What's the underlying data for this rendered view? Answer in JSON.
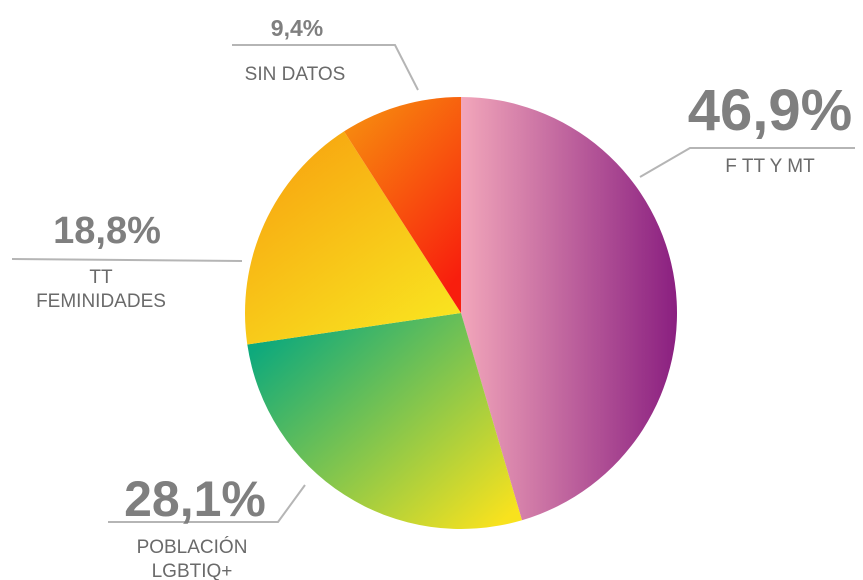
{
  "chart_data": {
    "type": "pie",
    "categories": [
      "F TT Y MT",
      "POBLACIÓN\nLGBTIQ+",
      "TT\nFEMINIDADES",
      "SIN DATOS"
    ],
    "values": [
      46.9,
      28.1,
      18.8,
      9.4
    ],
    "value_labels": [
      "46,9%",
      "28,1%",
      "18,8%",
      "9,4%"
    ],
    "colors": [
      [
        "#f2a6ba",
        "#8a1f80"
      ],
      [
        "#0ea97c",
        "#f8e21e"
      ],
      [
        "#f7a00f",
        "#f9e420"
      ],
      [
        "#f7900f",
        "#f81e0d"
      ]
    ]
  }
}
